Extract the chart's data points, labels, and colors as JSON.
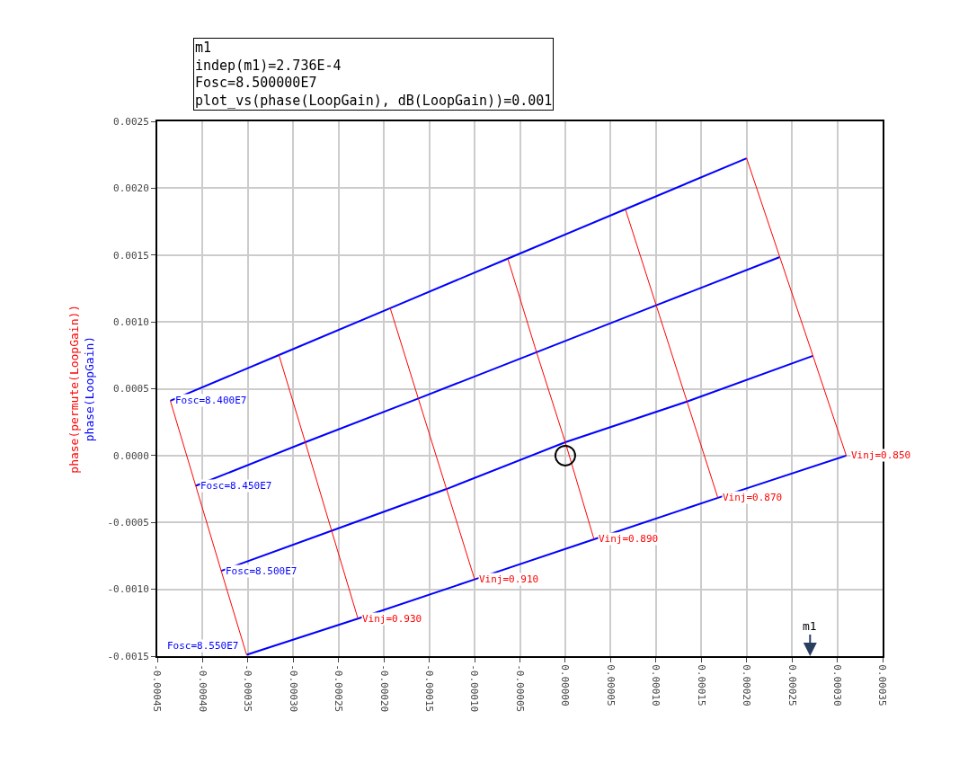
{
  "chart_data": {
    "type": "line",
    "ylabel": "phase(LoopGain)",
    "annotations": [
      "m1\nindep(m1)=2.736E-4\nFosc=8.500000E7\nplot_vs(phase(LoopGain), dB(LoopGain))=0.001",
      "phase(permute(LoopGain))",
      "m1"
    ],
    "series": [
      {
        "name": "Fosc=8.400E7",
        "color": "#0000ff",
        "x": [
          -0.0004356,
          -0.0003158,
          -0.0001931,
          -6.34e-05,
          6.63e-05,
          0.0002
        ],
        "values": [
          0.00041,
          0.000752,
          0.001103,
          0.001473,
          0.001843,
          0.002224
        ]
      },
      {
        "name": "Fosc=8.450E7",
        "color": "#0000ff",
        "x": [
          -0.0004076,
          -0.0002868,
          -0.0001621,
          -3.17e-05,
          0.0001003,
          0.0002366
        ],
        "values": [
          -0.000226,
          0.0001,
          0.000427,
          0.000773,
          0.001124,
          0.001485
        ]
      },
      {
        "name": "Fosc=8.500E7",
        "color": "#0000ff",
        "x": [
          -0.0003795,
          -0.0002577,
          -0.000131,
          0.0,
          0.0001343,
          0.0002732
        ],
        "values": [
          -0.000862,
          -0.000562,
          -0.00025,
          0.0001,
          0.000404,
          0.000746
        ]
      },
      {
        "name": "Fosc=8.550E7",
        "color": "#0000ff",
        "x": [
          -0.0003515,
          -0.0002287,
          -0.0001,
          3.17e-05,
          0.0001683,
          0.0003099
        ],
        "values": [
          -0.00149,
          -0.001219,
          -0.000926,
          -0.000626,
          -0.000316,
          0.0
        ]
      },
      {
        "color": "#ff0000",
        "x": [
          -0.0004356,
          -0.0004076,
          -0.0003795,
          -0.0003515
        ],
        "values": [
          0.00041,
          -0.000226,
          -0.000862,
          -0.00149
        ]
      },
      {
        "name": "Vinj=0.930",
        "color": "#ff0000",
        "x": [
          -0.0003158,
          -0.0002868,
          -0.0002577,
          -0.0002287
        ],
        "values": [
          0.000752,
          0.0001,
          -0.000562,
          -0.001219
        ]
      },
      {
        "name": "Vinj=0.910",
        "color": "#ff0000",
        "x": [
          -0.0001931,
          -0.0001621,
          -0.000131,
          -0.0001
        ],
        "values": [
          0.001103,
          0.000427,
          -0.00025,
          -0.000926
        ]
      },
      {
        "name": "Vinj=0.890",
        "color": "#ff0000",
        "x": [
          -6.34e-05,
          -3.17e-05,
          0.0,
          3.17e-05
        ],
        "values": [
          0.001473,
          0.000773,
          0.0001,
          -0.000626
        ]
      },
      {
        "name": "Vinj=0.870",
        "color": "#ff0000",
        "x": [
          6.63e-05,
          0.0001003,
          0.0001343,
          0.0001683
        ],
        "values": [
          0.001843,
          0.001124,
          0.000404,
          -0.000316
        ]
      },
      {
        "name": "Vinj=0.850",
        "color": "#ff0000",
        "x": [
          0.0002,
          0.0002366,
          0.0002732,
          0.0003099
        ],
        "values": [
          0.002224,
          0.001485,
          0.000746,
          0.0
        ]
      },
      {
        "type": "scatter",
        "marker": "circle",
        "color": "#000000",
        "x": [
          0.0
        ],
        "values": [
          0.0
        ]
      }
    ],
    "xlim": [
      -0.00045,
      0.00035
    ],
    "xticks": [
      {
        "value": -0.00045,
        "label": "-0.00045"
      },
      {
        "value": -0.0004,
        "label": "-0.00040"
      },
      {
        "value": -0.00035,
        "label": "-0.00035"
      },
      {
        "value": -0.0003,
        "label": "-0.00030"
      },
      {
        "value": -0.00025,
        "label": "-0.00025"
      },
      {
        "value": -0.0002,
        "label": "-0.00020"
      },
      {
        "value": -0.00015,
        "label": "-0.00015"
      },
      {
        "value": -0.0001,
        "label": "-0.00010"
      },
      {
        "value": -5e-05,
        "label": "-0.00005"
      },
      {
        "value": 0,
        "label": "0.00000"
      },
      {
        "value": 5e-05,
        "label": "0.00005"
      },
      {
        "value": 0.0001,
        "label": "0.00010"
      },
      {
        "value": 0.00015,
        "label": "0.00015"
      },
      {
        "value": 0.0002,
        "label": "0.00020"
      },
      {
        "value": 0.00025,
        "label": "0.00025"
      },
      {
        "value": 0.0003,
        "label": "0.00030"
      },
      {
        "value": 0.00035,
        "label": "0.00035"
      }
    ],
    "ylim": [
      -0.0015,
      0.0025
    ],
    "yticks": [
      {
        "value": -0.0015,
        "label": "-0.0015"
      },
      {
        "value": -0.001,
        "label": "-0.0010"
      },
      {
        "value": -0.0005,
        "label": "-0.0005"
      },
      {
        "value": 0,
        "label": "0.0000"
      },
      {
        "value": 0.0005,
        "label": "0.0005"
      },
      {
        "value": 0.001,
        "label": "0.0010"
      },
      {
        "value": 0.0015,
        "label": "0.0015"
      },
      {
        "value": 0.002,
        "label": "0.0020"
      },
      {
        "value": 0.0025,
        "label": "0.0025"
      }
    ],
    "grid": true,
    "marker": "none",
    "line_style": "solid"
  }
}
